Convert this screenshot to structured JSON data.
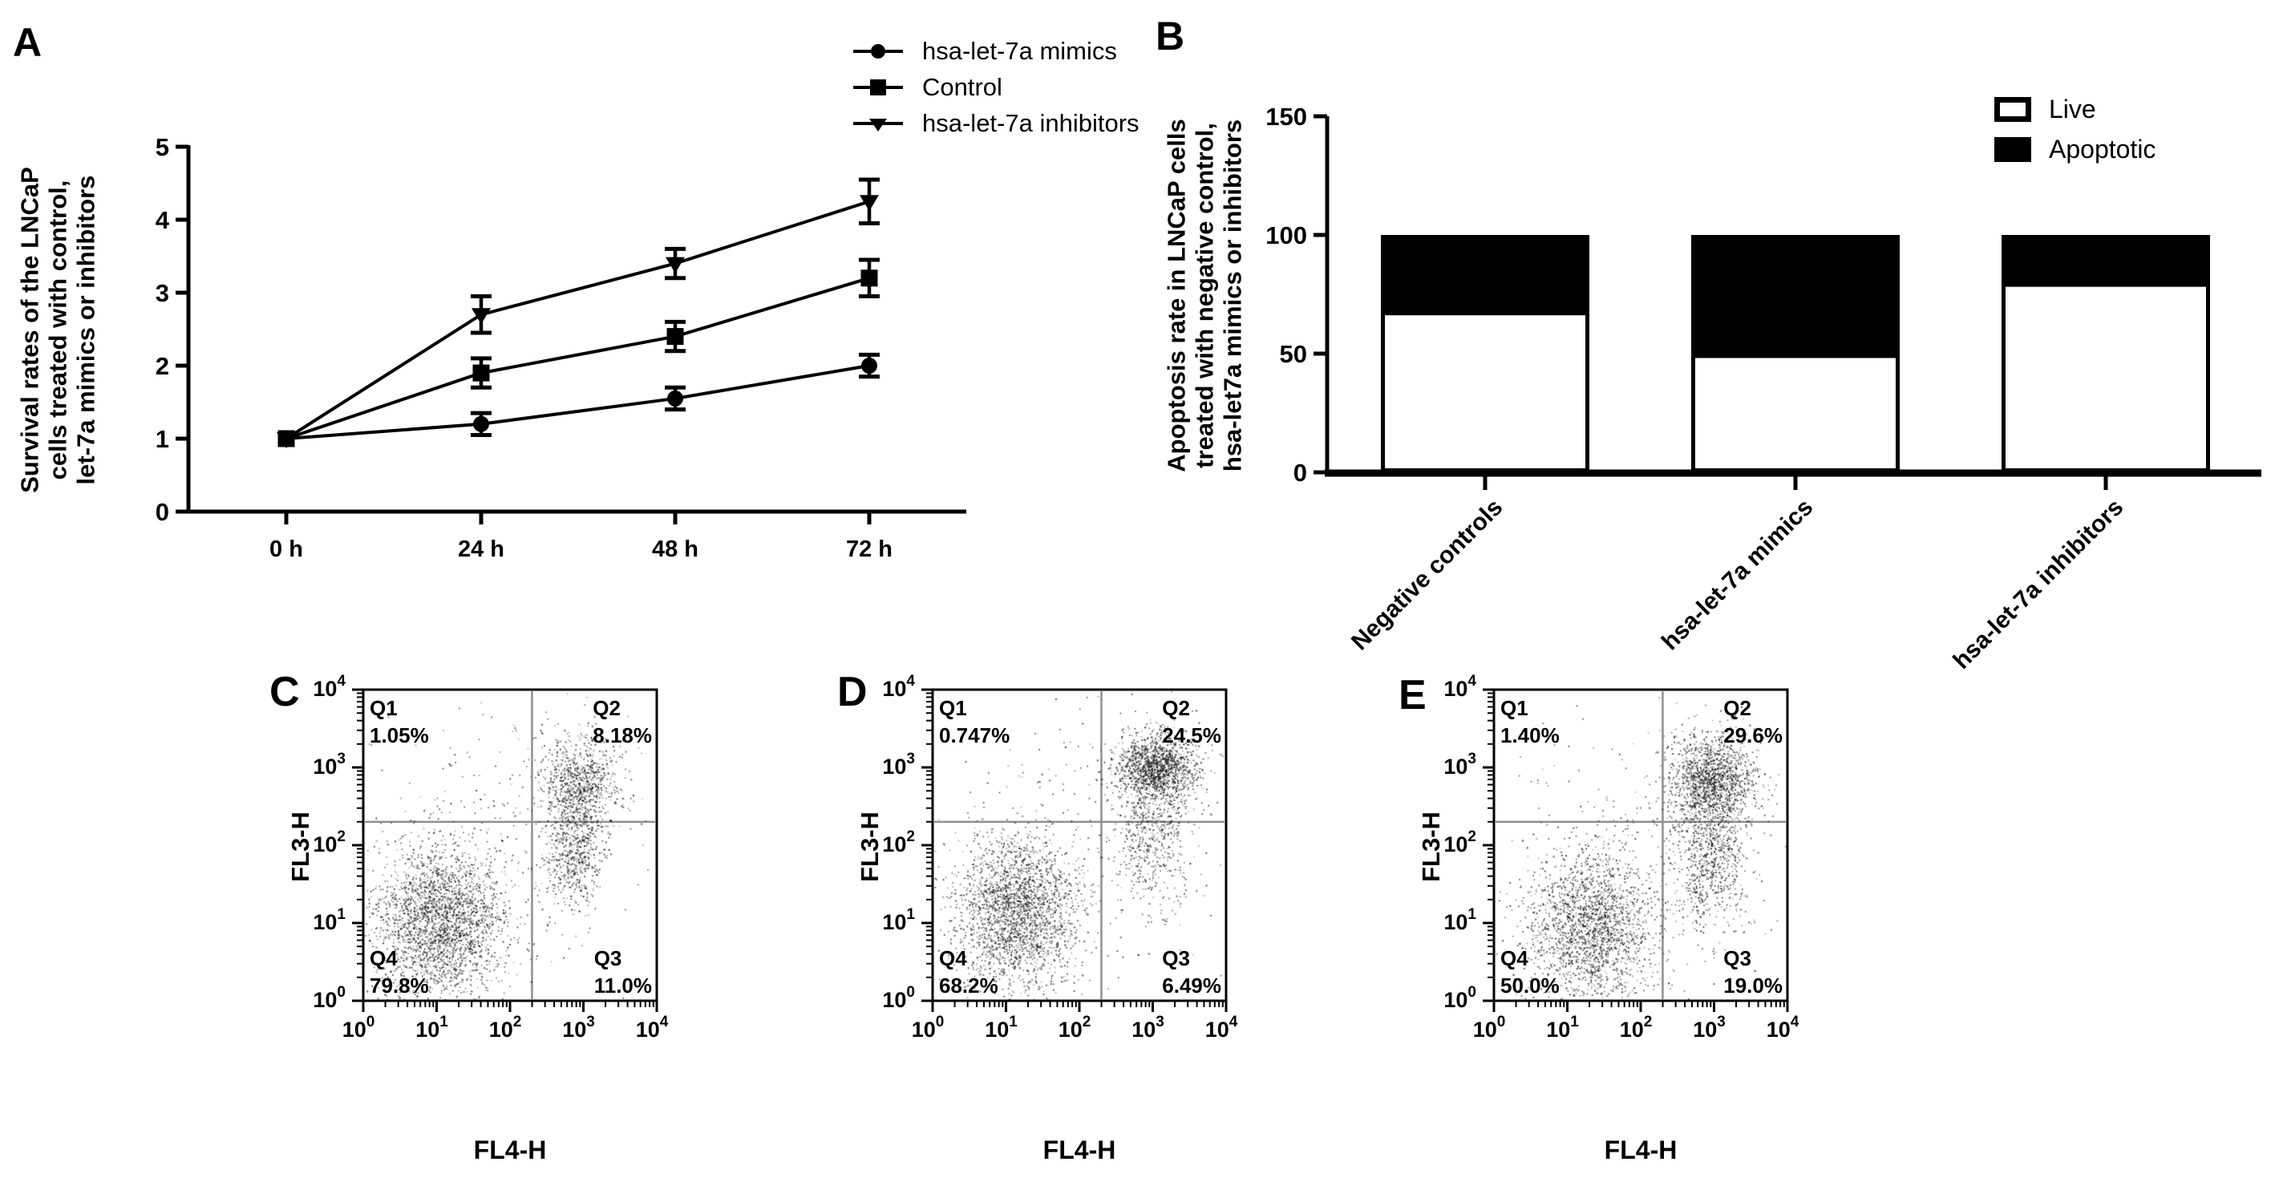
{
  "chart_data": [
    {
      "panel_label": "A",
      "type": "line",
      "title": "",
      "ylabel_lines": [
        "Survival rates of the LNCaP",
        "cells treated with control,",
        "let-7a mimics or inhibitors"
      ],
      "x_categories": [
        "0 h",
        "24 h",
        "48 h",
        "72 h"
      ],
      "ylim": [
        0,
        5
      ],
      "yticks": [
        0,
        1,
        2,
        3,
        4,
        5
      ],
      "grid": false,
      "legend_position": "top-right",
      "line_color": "#000000",
      "series": [
        {
          "name": "hsa-let-7a mimics",
          "marker": "circle",
          "values": [
            1.0,
            1.2,
            1.55,
            2.0
          ],
          "errors": [
            0,
            0.15,
            0.15,
            0.15
          ]
        },
        {
          "name": "Control",
          "marker": "square",
          "values": [
            1.0,
            1.9,
            2.4,
            3.2
          ],
          "errors": [
            0,
            0.2,
            0.2,
            0.25
          ]
        },
        {
          "name": "hsa-let-7a inhibitors",
          "marker": "triangle-down",
          "values": [
            1.0,
            2.7,
            3.4,
            4.25
          ],
          "errors": [
            0,
            0.25,
            0.2,
            0.3
          ]
        }
      ]
    },
    {
      "panel_label": "B",
      "type": "stacked-bar",
      "title": "",
      "ylabel_lines": [
        "Apoptosis rate in LNCaP cells",
        "treated with negative control,",
        "hsa-let7a mimics or inhibitors"
      ],
      "categories": [
        "Negative controls",
        "hsa-let-7a mimics",
        "hsa-let-7a inhibitors"
      ],
      "ylim": [
        0,
        150
      ],
      "yticks": [
        0,
        50,
        100,
        150
      ],
      "legend_position": "top-right",
      "series": [
        {
          "name": "Live",
          "color": "#ffffff",
          "values": [
            67,
            49,
            79
          ]
        },
        {
          "name": "Apoptotic",
          "color": "#000000",
          "values": [
            33,
            51,
            21
          ]
        }
      ]
    },
    {
      "panel_label": "C",
      "type": "scatter",
      "xlabel": "FL4-H",
      "ylabel": "FL3-H",
      "x_log_range": [
        0,
        4
      ],
      "y_log_range": [
        0,
        4
      ],
      "gate_x_log": 2.3,
      "gate_y_log": 2.3,
      "gate_color": "#8f8f8f",
      "seed": 101,
      "quadrants": [
        {
          "label": "Q1",
          "pct": "1.05%",
          "corner": "top-left"
        },
        {
          "label": "Q2",
          "pct": "8.18%",
          "corner": "top-right"
        },
        {
          "label": "Q3",
          "pct": "11.0%",
          "corner": "bottom-right"
        },
        {
          "label": "Q4",
          "pct": "79.8%",
          "corner": "bottom-left"
        }
      ],
      "clusters": [
        {
          "cx": 1.05,
          "cy": 1.0,
          "sx": 0.45,
          "sy": 0.5,
          "n": 2600
        },
        {
          "cx": 2.95,
          "cy": 2.8,
          "sx": 0.28,
          "sy": 0.3,
          "n": 850
        },
        {
          "cx": 2.85,
          "cy": 1.95,
          "sx": 0.2,
          "sy": 0.38,
          "n": 650
        },
        {
          "cx": 2.0,
          "cy": 2.1,
          "sx": 1.1,
          "sy": 1.05,
          "n": 220
        }
      ]
    },
    {
      "panel_label": "D",
      "type": "scatter",
      "xlabel": "FL4-H",
      "ylabel": "FL3-H",
      "x_log_range": [
        0,
        4
      ],
      "y_log_range": [
        0,
        4
      ],
      "gate_x_log": 2.3,
      "gate_y_log": 2.3,
      "gate_color": "#8f8f8f",
      "seed": 202,
      "quadrants": [
        {
          "label": "Q1",
          "pct": "0.747%",
          "corner": "top-left"
        },
        {
          "label": "Q2",
          "pct": "24.5%",
          "corner": "top-right"
        },
        {
          "label": "Q3",
          "pct": "6.49%",
          "corner": "bottom-right"
        },
        {
          "label": "Q4",
          "pct": "68.2%",
          "corner": "bottom-left"
        }
      ],
      "clusters": [
        {
          "cx": 1.15,
          "cy": 1.15,
          "sx": 0.42,
          "sy": 0.5,
          "n": 2400
        },
        {
          "cx": 3.05,
          "cy": 3.0,
          "sx": 0.28,
          "sy": 0.22,
          "n": 1350
        },
        {
          "cx": 3.0,
          "cy": 2.25,
          "sx": 0.26,
          "sy": 0.5,
          "n": 650
        },
        {
          "cx": 2.1,
          "cy": 2.2,
          "sx": 1.1,
          "sy": 1.0,
          "n": 200
        }
      ]
    },
    {
      "panel_label": "E",
      "type": "scatter",
      "xlabel": "FL4-H",
      "ylabel": "FL3-H",
      "x_log_range": [
        0,
        4
      ],
      "y_log_range": [
        0,
        4
      ],
      "gate_x_log": 2.3,
      "gate_y_log": 2.3,
      "gate_color": "#8f8f8f",
      "seed": 303,
      "quadrants": [
        {
          "label": "Q1",
          "pct": "1.40%",
          "corner": "top-left"
        },
        {
          "label": "Q2",
          "pct": "29.6%",
          "corner": "top-right"
        },
        {
          "label": "Q3",
          "pct": "19.0%",
          "corner": "bottom-right"
        },
        {
          "label": "Q4",
          "pct": "50.0%",
          "corner": "bottom-left"
        }
      ],
      "clusters": [
        {
          "cx": 1.35,
          "cy": 0.95,
          "sx": 0.45,
          "sy": 0.5,
          "n": 2100
        },
        {
          "cx": 2.95,
          "cy": 2.85,
          "sx": 0.3,
          "sy": 0.3,
          "n": 1450
        },
        {
          "cx": 2.95,
          "cy": 1.9,
          "sx": 0.25,
          "sy": 0.45,
          "n": 850
        },
        {
          "cx": 1.9,
          "cy": 2.0,
          "sx": 1.05,
          "sy": 1.0,
          "n": 200
        }
      ]
    }
  ]
}
